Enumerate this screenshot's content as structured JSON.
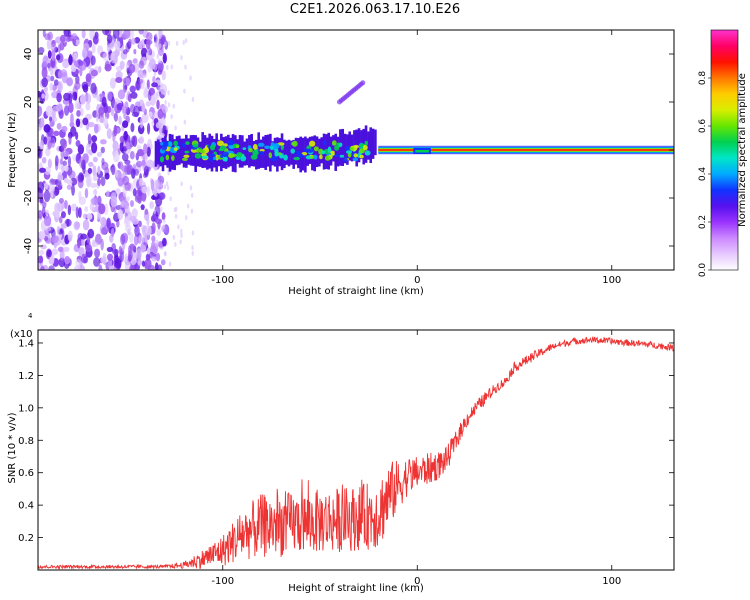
{
  "figure_title": "C2E1.2026.063.17.10.E26",
  "chart_data": [
    {
      "type": "heatmap",
      "title": "",
      "xlabel": "Height of straight line (km)",
      "ylabel": "Frequency (Hz)",
      "xlim": [
        -195,
        132
      ],
      "ylim": [
        -50,
        50
      ],
      "x_ticks": [
        -100,
        0,
        100
      ],
      "y_ticks": [
        -40,
        -20,
        0,
        20,
        40
      ],
      "colorbar": {
        "label": "Normalized spectral amplitude",
        "range": [
          0,
          1
        ],
        "ticks": [
          "0.0",
          "0.2",
          "0.4",
          "0.6",
          "0.8"
        ],
        "colors": [
          "#ffffff",
          "#e6c8ff",
          "#cc88ff",
          "#9933ff",
          "#5511ee",
          "#1133ff",
          "#00aaff",
          "#00e6c8",
          "#00d050",
          "#66e600",
          "#d8ee00",
          "#ffcc00",
          "#ff7700",
          "#ff1100",
          "#ff0066",
          "#ff33cc"
        ]
      },
      "regions": [
        {
          "name": "noise",
          "x": [
            -195,
            -135
          ],
          "freq": [
            -50,
            50
          ],
          "amplitude": 0.15
        },
        {
          "name": "onset",
          "x": [
            -135,
            -22
          ],
          "freq": [
            -10,
            8
          ],
          "amplitude": 0.35
        },
        {
          "name": "branch",
          "x": [
            -40,
            -28
          ],
          "freq": [
            20,
            28
          ],
          "amplitude": 0.2
        },
        {
          "name": "steady_tone",
          "x": [
            -20,
            132
          ],
          "freq": [
            0,
            0
          ],
          "amplitude": 0.95
        }
      ]
    },
    {
      "type": "line",
      "title": "",
      "xlabel": "Height of straight line (km)",
      "ylabel": "SNR (10 * v/v)",
      "y_scale_note": "(x10",
      "y_scale_exponent": "4",
      "xlim": [
        -195,
        132
      ],
      "ylim": [
        0,
        1.48
      ],
      "x_ticks": [
        -100,
        0,
        100
      ],
      "y_ticks": [
        0.2,
        0.4,
        0.6,
        0.8,
        1.0,
        1.2,
        1.4
      ],
      "y_tick_labels": [
        "0.2",
        "0.4",
        "0.6",
        "0.8",
        "1.0",
        "1.2",
        "1.4"
      ],
      "series": [
        {
          "name": "SNR",
          "color": "#ee3333",
          "x": [
            -195,
            -150,
            -130,
            -120,
            -110,
            -100,
            -90,
            -80,
            -70,
            -60,
            -50,
            -40,
            -30,
            -20,
            -15,
            -10,
            -5,
            0,
            5,
            10,
            15,
            20,
            25,
            30,
            35,
            40,
            45,
            50,
            60,
            70,
            80,
            90,
            100,
            110,
            120,
            132
          ],
          "y": [
            0.02,
            0.02,
            0.02,
            0.03,
            0.07,
            0.12,
            0.22,
            0.27,
            0.28,
            0.29,
            0.3,
            0.31,
            0.32,
            0.35,
            0.45,
            0.52,
            0.58,
            0.6,
            0.62,
            0.64,
            0.68,
            0.8,
            0.92,
            1.0,
            1.06,
            1.12,
            1.16,
            1.25,
            1.32,
            1.38,
            1.41,
            1.42,
            1.41,
            1.4,
            1.39,
            1.37
          ],
          "noise_amp": [
            0.01,
            0.01,
            0.01,
            0.02,
            0.06,
            0.1,
            0.16,
            0.2,
            0.2,
            0.19,
            0.2,
            0.2,
            0.2,
            0.22,
            0.22,
            0.16,
            0.12,
            0.1,
            0.1,
            0.09,
            0.08,
            0.06,
            0.05,
            0.04,
            0.04,
            0.03,
            0.03,
            0.03,
            0.03,
            0.02,
            0.02,
            0.02,
            0.02,
            0.02,
            0.02,
            0.02
          ]
        }
      ]
    }
  ]
}
